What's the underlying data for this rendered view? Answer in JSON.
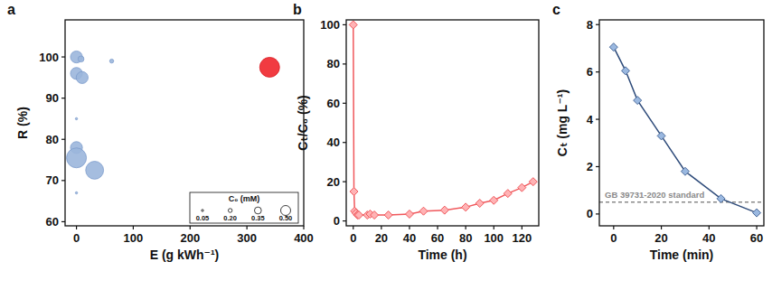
{
  "chart_data": [
    {
      "type": "scatter",
      "panel": "a",
      "x_label": "E (g kWh⁻¹)",
      "y_label": "R (%)",
      "xlim": [
        -20,
        400
      ],
      "xticks": [
        0,
        100,
        200,
        300,
        400
      ],
      "ylim": [
        59,
        109
      ],
      "yticks": [
        60,
        70,
        80,
        90,
        100
      ],
      "marker": "circle",
      "series": [
        {
          "color": "#9bb6dc",
          "x": [
            0,
            8,
            62,
            0,
            10,
            0,
            0,
            0,
            32,
            0
          ],
          "values": [
            100,
            99.5,
            99,
            96,
            95,
            85,
            78,
            75.5,
            72.5,
            67
          ],
          "sizes": [
            0.3,
            0.15,
            0.1,
            0.3,
            0.3,
            0.05,
            0.3,
            0.5,
            0.45,
            0.05
          ]
        },
        {
          "color": "#f0262c",
          "x": [
            340
          ],
          "values": [
            97.5
          ],
          "sizes": [
            0.5
          ]
        }
      ],
      "size_legend": {
        "title": "C₀ (mM)",
        "values": [
          0.05,
          {
            "value": 0.2,
            "label": "0.20"
          },
          {
            "value": 0.35,
            "label": "0.35"
          },
          {
            "value": 0.5,
            "label": "0.50"
          }
        ]
      }
    },
    {
      "type": "line",
      "panel": "b",
      "x_label": "Time (h)",
      "y_label": "Cₜ/C₀ (%)",
      "xlim": [
        -5,
        132
      ],
      "xticks": [
        0,
        20,
        40,
        60,
        80,
        100,
        120
      ],
      "ylim": [
        -2.5,
        102.5
      ],
      "yticks": [
        0,
        20,
        40,
        60,
        80,
        100
      ],
      "series": [
        {
          "color": "#f0585c",
          "marker": "diamond",
          "x": [
            0,
            0.5,
            1,
            2,
            3,
            4,
            10,
            12,
            15,
            25,
            40,
            50,
            65,
            80,
            90,
            100,
            110,
            120,
            128
          ],
          "values": [
            100,
            15,
            5,
            4,
            3,
            3,
            3,
            3.5,
            3,
            3,
            3.5,
            5,
            5.5,
            7,
            9,
            10.5,
            14,
            17,
            20
          ]
        }
      ]
    },
    {
      "type": "line",
      "panel": "c",
      "x_label": "Time (min)",
      "y_label": "Cₜ (mg L⁻¹)",
      "xlim": [
        -6,
        63
      ],
      "xticks": [
        0,
        20,
        40,
        60
      ],
      "ylim": [
        -0.5,
        8.2
      ],
      "yticks": [
        0,
        2,
        4,
        6,
        8
      ],
      "series": [
        {
          "color": "#2e4b7a",
          "marker": "diamond",
          "x": [
            0,
            5,
            10,
            20,
            30,
            45,
            60
          ],
          "values": [
            7.05,
            6.05,
            4.8,
            3.3,
            1.8,
            0.65,
            0.05
          ]
        }
      ],
      "reference_lines": [
        {
          "value": 0.5,
          "label": "GB 39731-2020 standard",
          "line_style": "dashed",
          "color": "#8a8a8a"
        }
      ]
    }
  ]
}
